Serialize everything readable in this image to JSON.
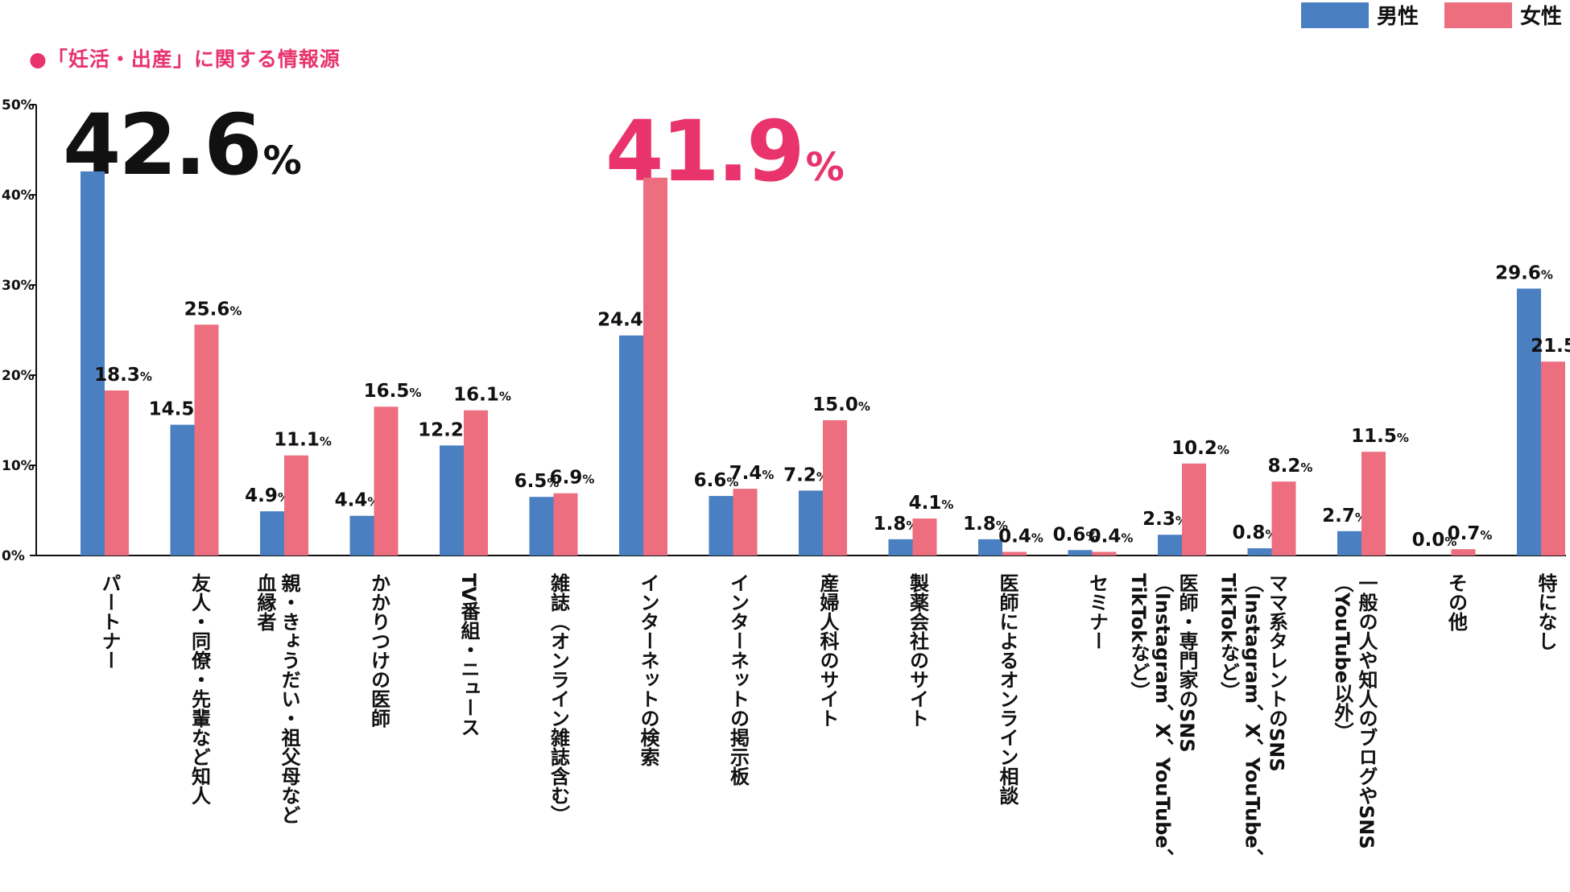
{
  "title": "●「妊活・出産」に関する情報源",
  "legend": {
    "male": "男性",
    "female": "女性"
  },
  "highlights": {
    "male": {
      "value": "42.6",
      "unit": "%"
    },
    "female": {
      "value": "41.9",
      "unit": "%"
    }
  },
  "colors": {
    "male": "#4a7fc1",
    "female": "#ec6e7f",
    "accent": "#e8336d"
  },
  "chart_data": {
    "type": "bar",
    "ylim": [
      0,
      50
    ],
    "yticks": [
      "0%",
      "10%",
      "20%",
      "30%",
      "40%",
      "50%"
    ],
    "categories": [
      [
        "パートナー"
      ],
      [
        "友人・同僚・先輩など知人"
      ],
      [
        "親・きょうだい・祖父母など",
        "血縁者"
      ],
      [
        "かかりつけの医師"
      ],
      [
        "TV番組・ニュース"
      ],
      [
        "雑誌（オンライン雑誌含む）"
      ],
      [
        "インターネットの検索"
      ],
      [
        "インターネットの掲示板"
      ],
      [
        "産婦人科のサイト"
      ],
      [
        "製薬会社のサイト"
      ],
      [
        "医師によるオンライン相談"
      ],
      [
        "セミナー"
      ],
      [
        "医師・専門家のSNS",
        "（Instagram、X、YouTube、",
        "TikTokなど）"
      ],
      [
        "ママ系タレントのSNS",
        "（Instagram、X、YouTube、",
        "TikTokなど）"
      ],
      [
        "一般の人や知人のブログやSNS",
        "（YouTube以外）"
      ],
      [
        "その他"
      ],
      [
        "特になし"
      ]
    ],
    "series": [
      {
        "name": "男性",
        "values": [
          42.6,
          14.5,
          4.9,
          4.4,
          12.2,
          6.5,
          24.4,
          6.6,
          7.2,
          1.8,
          1.8,
          0.6,
          2.3,
          0.8,
          2.7,
          0.0,
          29.6
        ]
      },
      {
        "name": "女性",
        "values": [
          18.3,
          25.6,
          11.1,
          16.5,
          16.1,
          6.9,
          41.9,
          7.4,
          15.0,
          4.1,
          0.4,
          0.4,
          10.2,
          8.2,
          11.5,
          0.7,
          21.5
        ]
      }
    ]
  }
}
